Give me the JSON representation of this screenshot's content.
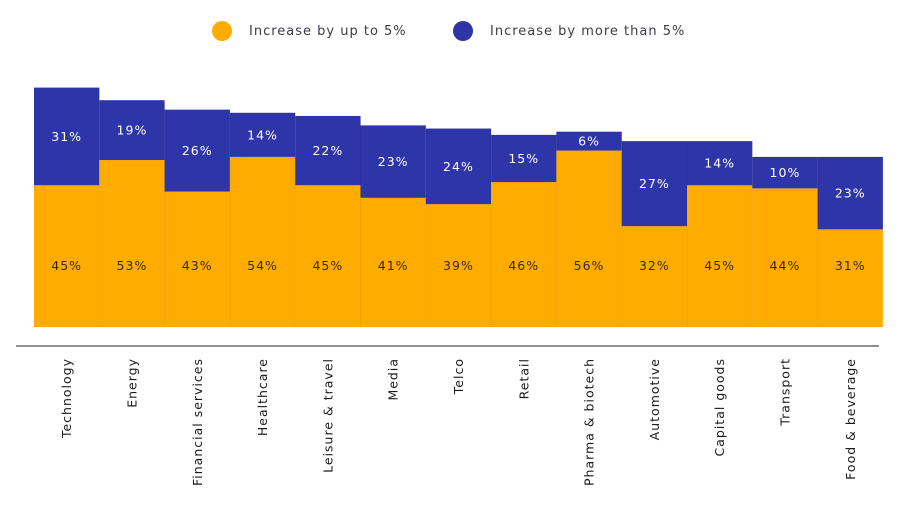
{
  "chart_data": {
    "type": "bar",
    "stacked": true,
    "title": "",
    "xlabel": "",
    "ylabel": "",
    "categories": [
      "Technology",
      "Energy",
      "Financial services",
      "Healthcare",
      "Leisure & travel",
      "Media",
      "Telco",
      "Retail",
      "Pharma & biotech",
      "Automotive",
      "Capital goods",
      "Transport",
      "Food & beverage"
    ],
    "series": [
      {
        "name": "Increase by up to 5%",
        "color": "#FFAB00",
        "values": [
          45,
          53,
          43,
          54,
          45,
          41,
          39,
          46,
          56,
          32,
          45,
          44,
          31
        ],
        "labels": [
          "45%",
          "53%",
          "43%",
          "54%",
          "45%",
          "41%",
          "39%",
          "46%",
          "56%",
          "32%",
          "45%",
          "44%",
          "31%"
        ]
      },
      {
        "name": "Increase by more than 5%",
        "color": "#2E35A8",
        "values": [
          31,
          19,
          26,
          14,
          22,
          23,
          24,
          15,
          6,
          27,
          14,
          10,
          23
        ],
        "labels": [
          "31%",
          "19%",
          "26%",
          "14%",
          "22%",
          "23%",
          "24%",
          "15%",
          "6%",
          "27%",
          "14%",
          "10%",
          "23%"
        ]
      }
    ],
    "legend": {
      "position": "top"
    },
    "grid": false
  }
}
